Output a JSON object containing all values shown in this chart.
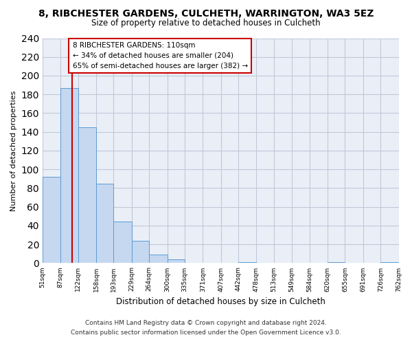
{
  "title": "8, RIBCHESTER GARDENS, CULCHETH, WARRINGTON, WA3 5EZ",
  "subtitle": "Size of property relative to detached houses in Culcheth",
  "xlabel": "Distribution of detached houses by size in Culcheth",
  "ylabel": "Number of detached properties",
  "footnote1": "Contains HM Land Registry data © Crown copyright and database right 2024.",
  "footnote2": "Contains public sector information licensed under the Open Government Licence v3.0.",
  "bin_edges": [
    51,
    87,
    122,
    158,
    193,
    229,
    264,
    300,
    335,
    371,
    407,
    442,
    478,
    513,
    549,
    584,
    620,
    655,
    691,
    726,
    762
  ],
  "bin_labels": [
    "51sqm",
    "87sqm",
    "122sqm",
    "158sqm",
    "193sqm",
    "229sqm",
    "264sqm",
    "300sqm",
    "335sqm",
    "371sqm",
    "407sqm",
    "442sqm",
    "478sqm",
    "513sqm",
    "549sqm",
    "584sqm",
    "620sqm",
    "655sqm",
    "691sqm",
    "726sqm",
    "762sqm"
  ],
  "counts": [
    92,
    187,
    145,
    85,
    44,
    24,
    9,
    4,
    0,
    0,
    0,
    1,
    0,
    0,
    0,
    0,
    1,
    0,
    0,
    1
  ],
  "bar_color": "#c5d8f0",
  "bar_edge_color": "#5b9bd5",
  "property_line_x": 110,
  "property_line_color": "#cc0000",
  "annotation_line1": "8 RIBCHESTER GARDENS: 110sqm",
  "annotation_line2": "← 34% of detached houses are smaller (204)",
  "annotation_line3": "65% of semi-detached houses are larger (382) →",
  "annotation_box_edge": "#cc0000",
  "ylim": [
    0,
    240
  ],
  "yticks": [
    0,
    20,
    40,
    60,
    80,
    100,
    120,
    140,
    160,
    180,
    200,
    220,
    240
  ],
  "grid_color": "#c0c8d8",
  "background_color": "#eaeff7"
}
